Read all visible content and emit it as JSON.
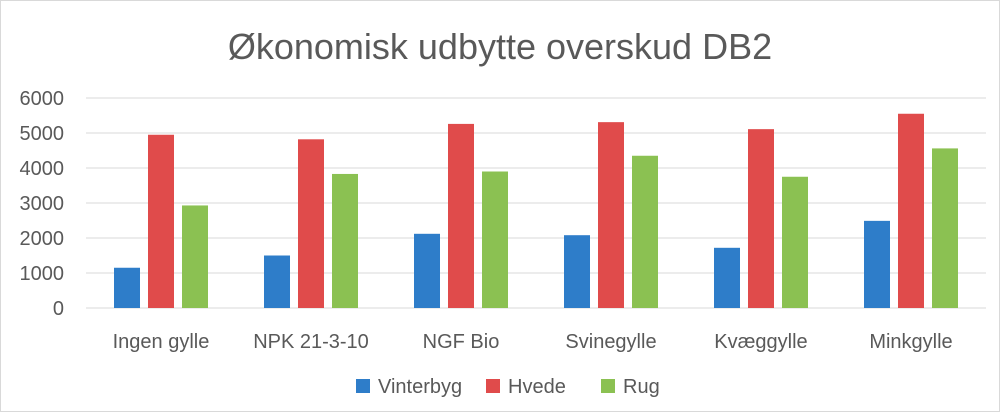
{
  "chart_data": {
    "type": "bar",
    "title": "Økonomisk udbytte overskud DB2",
    "xlabel": "",
    "ylabel": "",
    "ylim": [
      0,
      6000
    ],
    "yticks": [
      0,
      1000,
      2000,
      3000,
      4000,
      5000,
      6000
    ],
    "grid": true,
    "legend_position": "bottom",
    "categories": [
      "Ingen gylle",
      "NPK 21-3-10",
      "NGF Bio",
      "Svinegylle",
      "Kvæggylle",
      "Minkgylle"
    ],
    "series": [
      {
        "name": "Vinterbyg",
        "color": "#2e7dc9",
        "values": [
          1150,
          1500,
          2120,
          2080,
          1720,
          2490
        ]
      },
      {
        "name": "Hvede",
        "color": "#e04b4b",
        "values": [
          4950,
          4820,
          5260,
          5310,
          5110,
          5550
        ]
      },
      {
        "name": "Rug",
        "color": "#8bc152",
        "values": [
          2930,
          3830,
          3900,
          4350,
          3750,
          4560
        ]
      }
    ]
  },
  "colors": {
    "grid": "#d9d9d9",
    "text": "#595959"
  }
}
